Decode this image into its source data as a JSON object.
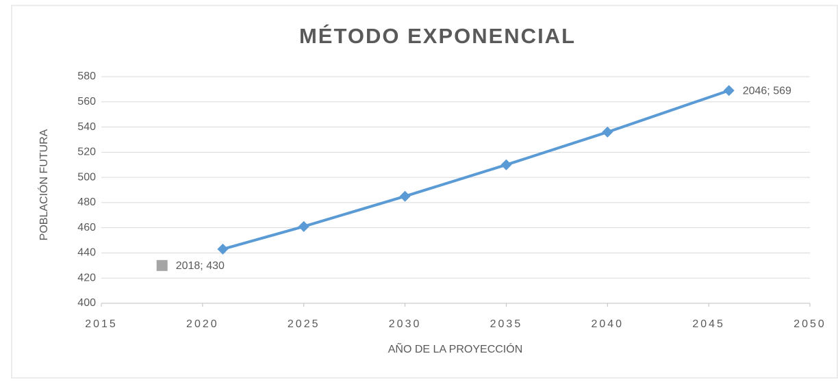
{
  "chart_data": {
    "type": "scatter",
    "title": "MÉTODO EXPONENCIAL",
    "x_label": "AÑO  DE LA PROYECCIÓN",
    "y_label": "POBLACIÓN FUTURA",
    "xlim": [
      2015,
      2050
    ],
    "xticks": [
      2015,
      2020,
      2025,
      2030,
      2035,
      2040,
      2045,
      2050
    ],
    "ylim": [
      400,
      580
    ],
    "yticks": [
      400,
      420,
      440,
      460,
      480,
      500,
      520,
      540,
      560,
      580
    ],
    "grid": true,
    "series": [
      {
        "color": "#5b9bd5",
        "line": true,
        "marker": "diamond",
        "x": [
          2021,
          2025,
          2030,
          2035,
          2040,
          2046
        ],
        "values": [
          443,
          461,
          485,
          510,
          536,
          569
        ],
        "value_labels": [
          null,
          null,
          null,
          null,
          null,
          "2046; 569"
        ]
      },
      {
        "color": "#a5a5a5",
        "line": false,
        "marker": "square",
        "x": [
          2018
        ],
        "values": [
          430
        ],
        "value_labels": [
          "2018; 430"
        ]
      }
    ]
  }
}
